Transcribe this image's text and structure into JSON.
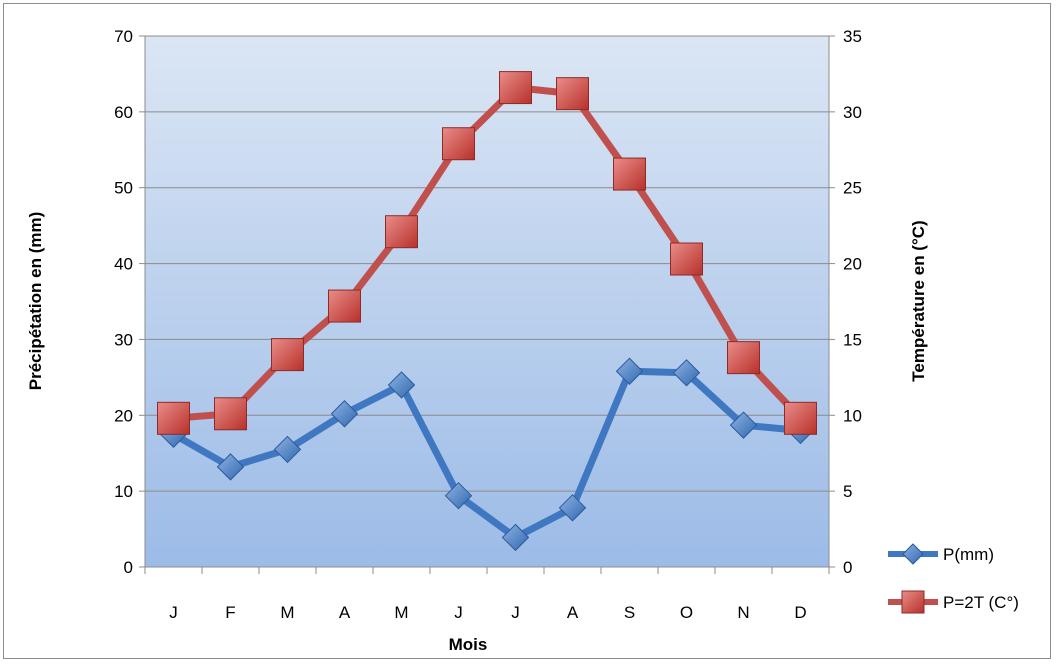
{
  "chart_data": {
    "type": "line",
    "categories": [
      "J",
      "F",
      "M",
      "A",
      "M",
      "J",
      "J",
      "A",
      "S",
      "O",
      "N",
      "D"
    ],
    "series": [
      {
        "name": "P(mm)",
        "axis": "left",
        "color": "#3f78c1",
        "marker": "diamond",
        "values": [
          17.5,
          13.2,
          15.5,
          20.2,
          24,
          9.4,
          3.9,
          7.8,
          25.8,
          25.6,
          18.7,
          18
        ]
      },
      {
        "name": "P=2T (C°)",
        "axis": "right",
        "color": "#c0504d",
        "marker": "square",
        "values": [
          9.8,
          10.1,
          14,
          17.2,
          22.1,
          27.9,
          31.6,
          31.2,
          25.9,
          20.3,
          13.8,
          9.8
        ]
      }
    ],
    "xlabel": "Mois",
    "ylabel": "Précipétation en (mm)",
    "ylabel_right": "Température en (°C)",
    "ylim": [
      0,
      70
    ],
    "ylim_right": [
      0,
      35
    ],
    "yticks": [
      "0",
      "10",
      "20",
      "30",
      "40",
      "50",
      "60",
      "70"
    ],
    "yticks_right": [
      "0",
      "5",
      "10",
      "15",
      "20",
      "25",
      "30",
      "35"
    ],
    "grid": true,
    "legend": "right"
  }
}
